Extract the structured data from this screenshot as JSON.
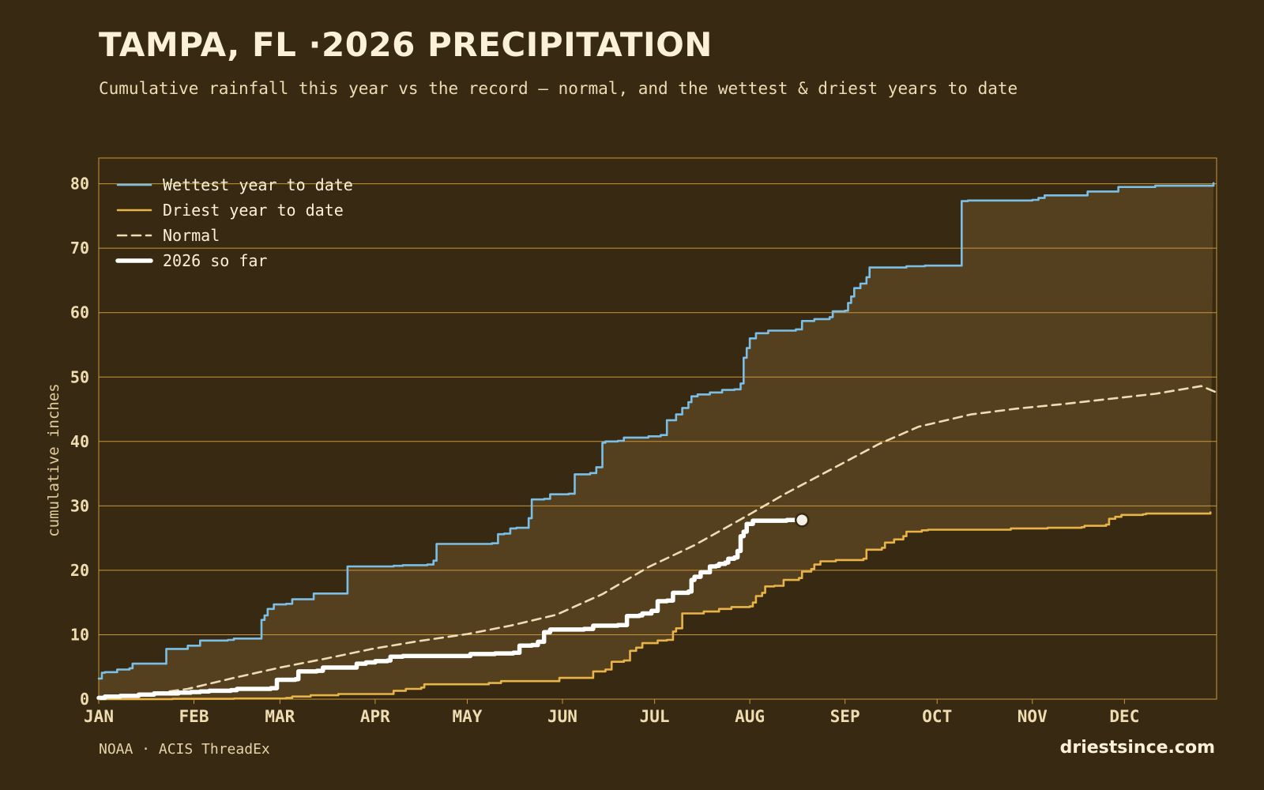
{
  "header": {
    "title": "TAMPA, FL ·2026 PRECIPITATION",
    "subtitle": "Cumulative rainfall this year vs the record — normal, and the wettest & driest years to date"
  },
  "footer": {
    "source": "NOAA · ACIS ThreadEx",
    "brand": "driestsince.com"
  },
  "colors": {
    "background": "#382a12",
    "band_fill": "#54401e",
    "grid": "#c9963a",
    "wettest": "#7cbfe6",
    "driest": "#e8b448",
    "normal": "#eedcb4",
    "current": "#ffffff",
    "tick_text": "#efdcb0"
  },
  "chart_data": {
    "type": "line",
    "title": "TAMPA, FL ·2026 PRECIPITATION",
    "subtitle": "Cumulative rainfall this year vs the record — normal, and the wettest & driest years to date",
    "ylabel": "cumulative inches",
    "xlabel": "",
    "x_unit": "day of year",
    "xlim": [
      1,
      365
    ],
    "ylim": [
      0,
      84
    ],
    "yticks": [
      0,
      10,
      20,
      30,
      40,
      50,
      60,
      70,
      80
    ],
    "xticks": [
      {
        "label": "JAN",
        "day": 1
      },
      {
        "label": "FEB",
        "day": 32
      },
      {
        "label": "MAR",
        "day": 60
      },
      {
        "label": "APR",
        "day": 91
      },
      {
        "label": "MAY",
        "day": 121
      },
      {
        "label": "JUN",
        "day": 152
      },
      {
        "label": "JUL",
        "day": 182
      },
      {
        "label": "AUG",
        "day": 213
      },
      {
        "label": "SEP",
        "day": 244
      },
      {
        "label": "OCT",
        "day": 274
      },
      {
        "label": "NOV",
        "day": 305
      },
      {
        "label": "DEC",
        "day": 335
      }
    ],
    "grid": true,
    "legend_position": "top-left",
    "series": [
      {
        "name": "Wettest year to date",
        "style": "step",
        "points": [
          [
            1,
            3.2
          ],
          [
            2,
            4.1
          ],
          [
            3,
            4.2
          ],
          [
            7,
            4.3
          ],
          [
            7,
            4.6
          ],
          [
            10,
            4.6
          ],
          [
            11,
            4.8
          ],
          [
            12,
            5.5
          ],
          [
            23,
            5.6
          ],
          [
            23,
            7.8
          ],
          [
            29,
            7.8
          ],
          [
            30,
            8.3
          ],
          [
            33,
            8.3
          ],
          [
            34,
            9.1
          ],
          [
            43,
            9.2
          ],
          [
            45,
            9.4
          ],
          [
            53,
            9.4
          ],
          [
            54,
            12.3
          ],
          [
            55,
            13
          ],
          [
            56,
            14
          ],
          [
            58,
            14.7
          ],
          [
            62,
            14.8
          ],
          [
            64,
            15.5
          ],
          [
            71,
            15.6
          ],
          [
            71,
            16.4
          ],
          [
            81,
            16.4
          ],
          [
            82,
            20.6
          ],
          [
            97,
            20.7
          ],
          [
            100,
            20.8
          ],
          [
            108,
            20.9
          ],
          [
            110,
            21.5
          ],
          [
            111,
            24.1
          ],
          [
            129,
            24.2
          ],
          [
            131,
            25.6
          ],
          [
            133,
            25.7
          ],
          [
            135,
            26.5
          ],
          [
            137,
            26.6
          ],
          [
            141,
            28.1
          ],
          [
            142,
            31
          ],
          [
            146,
            31.1
          ],
          [
            148,
            31.8
          ],
          [
            154,
            31.9
          ],
          [
            156,
            34.9
          ],
          [
            161,
            35.1
          ],
          [
            163,
            36
          ],
          [
            165,
            39.8
          ],
          [
            166,
            40
          ],
          [
            170,
            40.1
          ],
          [
            172,
            40.6
          ],
          [
            180,
            40.8
          ],
          [
            184,
            41
          ],
          [
            186,
            43.3
          ],
          [
            189,
            44.2
          ],
          [
            191,
            45.2
          ],
          [
            193,
            46.1
          ],
          [
            194,
            47
          ],
          [
            196,
            47.3
          ],
          [
            200,
            47.6
          ],
          [
            204,
            48
          ],
          [
            208,
            48.1
          ],
          [
            210,
            49
          ],
          [
            211,
            53
          ],
          [
            212,
            54.5
          ],
          [
            213,
            56
          ],
          [
            215,
            56.8
          ],
          [
            219,
            57.2
          ],
          [
            228,
            57.4
          ],
          [
            230,
            58.7
          ],
          [
            234,
            59
          ],
          [
            239,
            59.3
          ],
          [
            240,
            60.2
          ],
          [
            244,
            60.3
          ],
          [
            245,
            61.5
          ],
          [
            246,
            62.5
          ],
          [
            247,
            63.8
          ],
          [
            249,
            64.5
          ],
          [
            251,
            65.5
          ],
          [
            252,
            67
          ],
          [
            262,
            67
          ],
          [
            264,
            67.2
          ],
          [
            270,
            67.3
          ],
          [
            281,
            67.3
          ],
          [
            282,
            77.3
          ],
          [
            284,
            77.4
          ],
          [
            305,
            77.5
          ],
          [
            307,
            77.8
          ],
          [
            309,
            78.2
          ],
          [
            322,
            78.2
          ],
          [
            323,
            78.8
          ],
          [
            332,
            78.8
          ],
          [
            333,
            79.5
          ],
          [
            343,
            79.5
          ],
          [
            345,
            79.7
          ],
          [
            361,
            79.7
          ],
          [
            364,
            80.1
          ]
        ]
      },
      {
        "name": "Driest year to date",
        "style": "step",
        "points": [
          [
            1,
            0
          ],
          [
            25,
            0.05
          ],
          [
            45,
            0.1
          ],
          [
            62,
            0.2
          ],
          [
            64,
            0.4
          ],
          [
            70,
            0.6
          ],
          [
            79,
            0.8
          ],
          [
            94,
            0.8
          ],
          [
            97,
            1.3
          ],
          [
            101,
            1.6
          ],
          [
            106,
            1.8
          ],
          [
            107,
            2.3
          ],
          [
            117,
            2.3
          ],
          [
            122,
            2.3
          ],
          [
            128,
            2.5
          ],
          [
            132,
            2.8
          ],
          [
            150,
            2.8
          ],
          [
            151,
            3.3
          ],
          [
            160,
            3.3
          ],
          [
            162,
            4.3
          ],
          [
            166,
            4.6
          ],
          [
            168,
            5.8
          ],
          [
            172,
            6
          ],
          [
            174,
            7.5
          ],
          [
            176,
            8
          ],
          [
            178,
            8.7
          ],
          [
            183,
            9.1
          ],
          [
            186,
            9.2
          ],
          [
            188,
            10.5
          ],
          [
            189,
            11
          ],
          [
            191,
            13.3
          ],
          [
            198,
            13.6
          ],
          [
            203,
            14
          ],
          [
            207,
            14.3
          ],
          [
            213,
            14.4
          ],
          [
            214,
            15
          ],
          [
            215,
            16
          ],
          [
            217,
            16.5
          ],
          [
            218,
            17.5
          ],
          [
            221,
            17.6
          ],
          [
            224,
            18.5
          ],
          [
            229,
            18.8
          ],
          [
            230,
            19.8
          ],
          [
            233,
            20.2
          ],
          [
            234,
            20.9
          ],
          [
            236,
            21.4
          ],
          [
            241,
            21.6
          ],
          [
            250,
            21.8
          ],
          [
            251,
            23.2
          ],
          [
            256,
            23.5
          ],
          [
            257,
            24.3
          ],
          [
            260,
            24.8
          ],
          [
            263,
            25.3
          ],
          [
            264,
            26
          ],
          [
            269,
            26.2
          ],
          [
            271,
            26.3
          ],
          [
            298,
            26.5
          ],
          [
            310,
            26.6
          ],
          [
            321,
            26.7
          ],
          [
            322,
            26.9
          ],
          [
            329,
            27.1
          ],
          [
            330,
            28
          ],
          [
            332,
            28.3
          ],
          [
            334,
            28.6
          ],
          [
            341,
            28.7
          ],
          [
            342,
            28.8
          ],
          [
            363,
            29
          ]
        ]
      },
      {
        "name": "Normal",
        "style": "dashed",
        "points": [
          [
            1,
            0.2
          ],
          [
            15,
            0.6
          ],
          [
            30,
            1.6
          ],
          [
            45,
            3.3
          ],
          [
            60,
            4.9
          ],
          [
            75,
            6.3
          ],
          [
            90,
            7.8
          ],
          [
            105,
            9
          ],
          [
            121,
            10.1
          ],
          [
            135,
            11.4
          ],
          [
            150,
            13.1
          ],
          [
            165,
            16.3
          ],
          [
            180,
            20.5
          ],
          [
            195,
            23.9
          ],
          [
            210,
            27.9
          ],
          [
            225,
            32
          ],
          [
            240,
            35.8
          ],
          [
            255,
            39.6
          ],
          [
            268,
            42.3
          ],
          [
            285,
            44.2
          ],
          [
            300,
            45.1
          ],
          [
            315,
            45.8
          ],
          [
            330,
            46.6
          ],
          [
            345,
            47.4
          ],
          [
            360,
            48.6
          ],
          [
            365,
            47.6
          ]
        ]
      },
      {
        "name": "2026 so far",
        "style": "step-bold",
        "points": [
          [
            1,
            0.2
          ],
          [
            3,
            0.4
          ],
          [
            8,
            0.5
          ],
          [
            14,
            0.7
          ],
          [
            19,
            0.9
          ],
          [
            27,
            1
          ],
          [
            31,
            1.1
          ],
          [
            34,
            1.2
          ],
          [
            37,
            1.3
          ],
          [
            44,
            1.4
          ],
          [
            46,
            1.6
          ],
          [
            57,
            1.7
          ],
          [
            59,
            3
          ],
          [
            65,
            3.1
          ],
          [
            66,
            4.3
          ],
          [
            72,
            4.4
          ],
          [
            74,
            4.9
          ],
          [
            84,
            4.9
          ],
          [
            85,
            5.5
          ],
          [
            88,
            5.7
          ],
          [
            91,
            5.9
          ],
          [
            95,
            6
          ],
          [
            96,
            6.6
          ],
          [
            100,
            6.7
          ],
          [
            121,
            6.7
          ],
          [
            122,
            7
          ],
          [
            130,
            7.1
          ],
          [
            136,
            7.2
          ],
          [
            138,
            8.3
          ],
          [
            142,
            8.4
          ],
          [
            144,
            8.9
          ],
          [
            146,
            10.4
          ],
          [
            148,
            10.8
          ],
          [
            159,
            10.9
          ],
          [
            162,
            11.4
          ],
          [
            170,
            11.5
          ],
          [
            173,
            12.9
          ],
          [
            177,
            13
          ],
          [
            178,
            13.3
          ],
          [
            181,
            13.7
          ],
          [
            183,
            15.2
          ],
          [
            186,
            15.3
          ],
          [
            188,
            16.5
          ],
          [
            193,
            16.7
          ],
          [
            194,
            18.5
          ],
          [
            195,
            19
          ],
          [
            197,
            19.7
          ],
          [
            199,
            19.7
          ],
          [
            200,
            20.6
          ],
          [
            202,
            20.7
          ],
          [
            203,
            21
          ],
          [
            205,
            21.2
          ],
          [
            206,
            21.8
          ],
          [
            208,
            22
          ],
          [
            209,
            23
          ],
          [
            210,
            25.3
          ],
          [
            211,
            26
          ],
          [
            212,
            27.2
          ],
          [
            214,
            27.7
          ],
          [
            220,
            27.7
          ],
          [
            225,
            27.8
          ],
          [
            230,
            27.8
          ]
        ]
      }
    ]
  }
}
